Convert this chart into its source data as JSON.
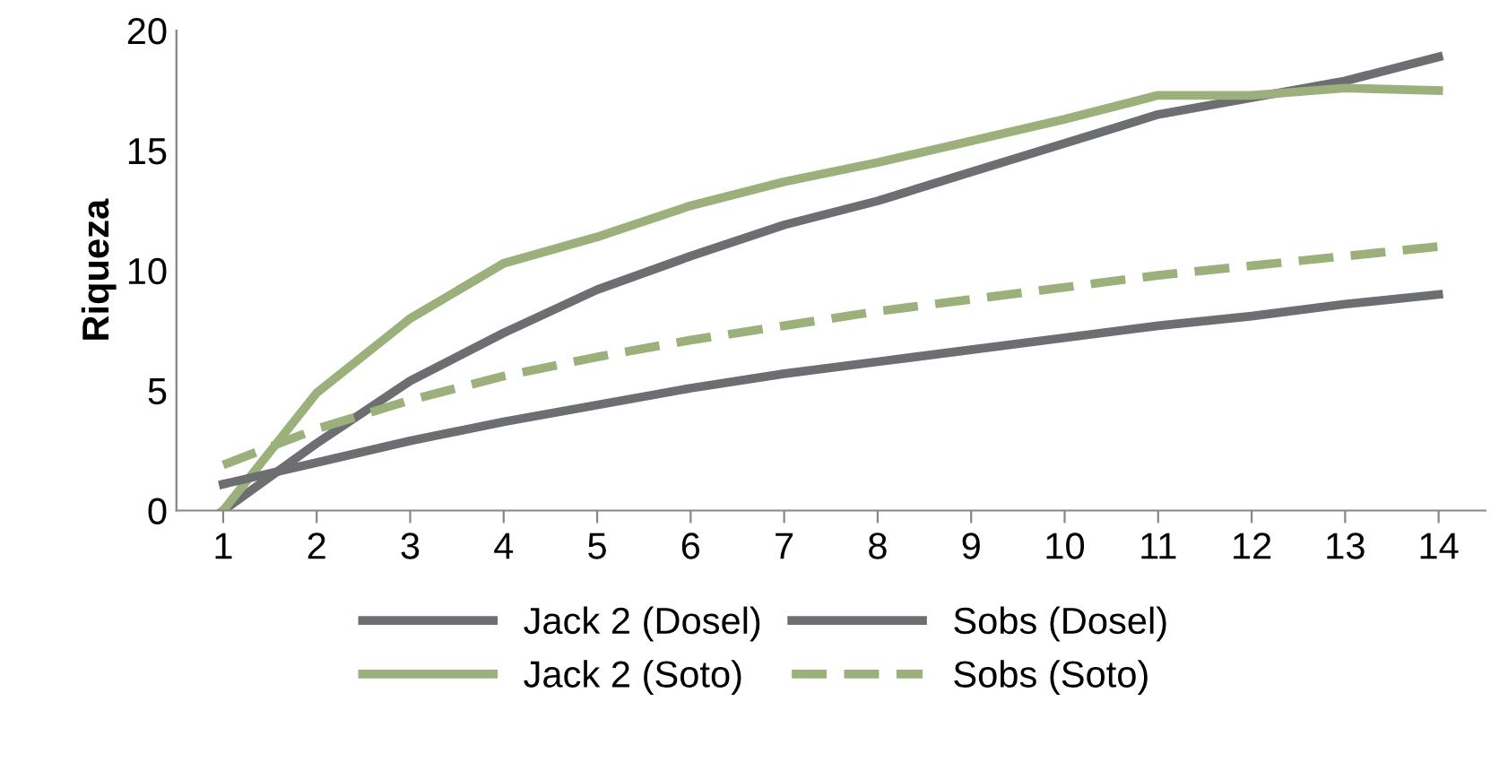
{
  "chart_data": {
    "type": "line",
    "ylabel": "Riqueza",
    "categories": [
      "1",
      "2",
      "3",
      "4",
      "5",
      "6",
      "7",
      "8",
      "9",
      "10",
      "11",
      "12",
      "13",
      "14"
    ],
    "series": [
      {
        "name": "Jack 2 (Dosel)",
        "color": "#6d6e71",
        "line_style": "solid",
        "values": [
          0,
          2.8,
          5.4,
          7.4,
          9.2,
          10.6,
          11.9,
          12.9,
          14.1,
          15.3,
          16.5,
          17.2,
          17.9,
          18.9
        ]
      },
      {
        "name": "Jack 2 (Soto)",
        "color": "#9bb07a",
        "line_style": "solid",
        "values": [
          0,
          4.9,
          8.0,
          10.3,
          11.4,
          12.7,
          13.7,
          14.5,
          15.4,
          16.3,
          17.3,
          17.3,
          17.6,
          17.5
        ]
      },
      {
        "name": "Sobs (Dosel)",
        "color": "#6d6e71",
        "line_style": "solid",
        "values": [
          1.1,
          2.0,
          2.9,
          3.7,
          4.4,
          5.1,
          5.7,
          6.2,
          6.7,
          7.2,
          7.7,
          8.1,
          8.6,
          9.0
        ]
      },
      {
        "name": "Sobs (Soto)",
        "color": "#9bb07a",
        "line_style": "dashed",
        "values": [
          1.9,
          3.4,
          4.6,
          5.6,
          6.4,
          7.1,
          7.7,
          8.3,
          8.8,
          9.3,
          9.8,
          10.2,
          10.6,
          11.0
        ]
      }
    ],
    "ylim": [
      0,
      20
    ],
    "yticks": [
      0,
      5,
      10,
      15,
      20
    ],
    "grid": false,
    "legend": "bottom",
    "marker": "none"
  }
}
